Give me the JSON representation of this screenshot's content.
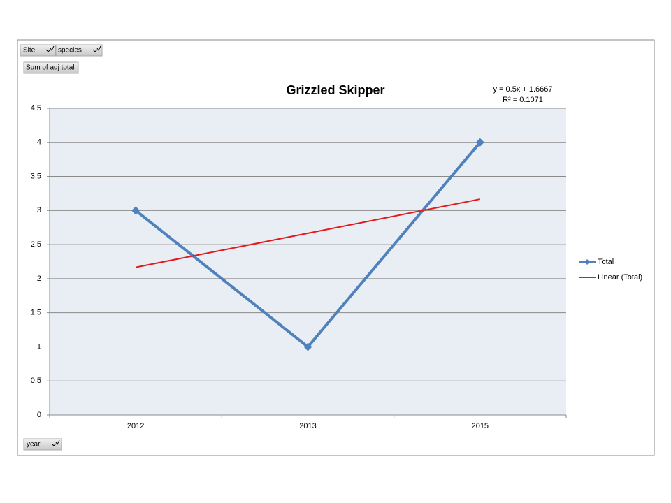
{
  "pivot_fields": {
    "filters": [
      "Site",
      "species"
    ],
    "values_field": "Sum of adj total",
    "axis_field": "year"
  },
  "chart_data": {
    "type": "line",
    "title": "Grizzled Skipper",
    "categories": [
      "2012",
      "2013",
      "2015"
    ],
    "series": [
      {
        "name": "Total",
        "color": "#4f81bd",
        "marker": "diamond",
        "values": [
          3,
          1,
          4
        ]
      },
      {
        "name": "Linear (Total)",
        "color": "#e31a1c",
        "marker": "none",
        "values": [
          2.1667,
          2.6667,
          3.1667
        ]
      }
    ],
    "trendline_equation": "y = 0.5x + 1.6667",
    "r_squared": "R² = 0.1071",
    "ylim": [
      0,
      4.5
    ],
    "yticks": [
      0,
      0.5,
      1,
      1.5,
      2,
      2.5,
      3,
      3.5,
      4,
      4.5
    ],
    "grid": true,
    "legend": "right"
  }
}
